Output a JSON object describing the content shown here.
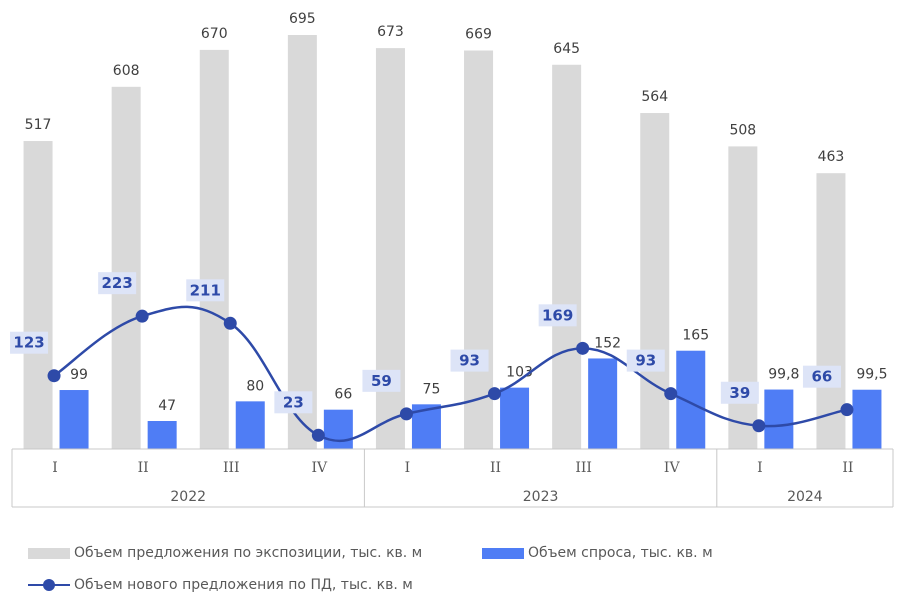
{
  "chart_data": {
    "type": "bar",
    "categories": [
      "I",
      "II",
      "III",
      "IV",
      "I",
      "II",
      "III",
      "IV",
      "I",
      "II"
    ],
    "groups": [
      {
        "label": "2022",
        "count": 4
      },
      {
        "label": "2023",
        "count": 4
      },
      {
        "label": "2024",
        "count": 2
      }
    ],
    "series": [
      {
        "name": "Объем предложения по экспозиции, тыс. кв. м",
        "kind": "bar",
        "color": "#d9d9d9",
        "values": [
          517,
          608,
          670,
          695,
          673,
          669,
          645,
          564,
          508,
          463
        ],
        "labels": [
          "517",
          "608",
          "670",
          "695",
          "673",
          "669",
          "645",
          "564",
          "508",
          "463"
        ]
      },
      {
        "name": "Объем спроса, тыс. кв. м",
        "kind": "bar",
        "color": "#4f7df5",
        "values": [
          99,
          47,
          80,
          66,
          75,
          103,
          152,
          165,
          99.8,
          99.5
        ],
        "labels": [
          "99",
          "47",
          "80",
          "66",
          "75",
          "103",
          "152",
          "165",
          "99,8",
          "99,5"
        ]
      },
      {
        "name": "Объем нового предложения по ПД, тыс. кв. м",
        "kind": "line",
        "color": "#2e4aa8",
        "values": [
          123,
          223,
          211,
          23,
          59,
          93,
          169,
          93,
          39,
          66
        ],
        "labels": [
          "123",
          "223",
          "211",
          "23",
          "59",
          "93",
          "169",
          "93",
          "39",
          "66"
        ]
      }
    ],
    "ylim": [
      0,
      700
    ],
    "grid": false,
    "legend_position": "bottom-left"
  }
}
